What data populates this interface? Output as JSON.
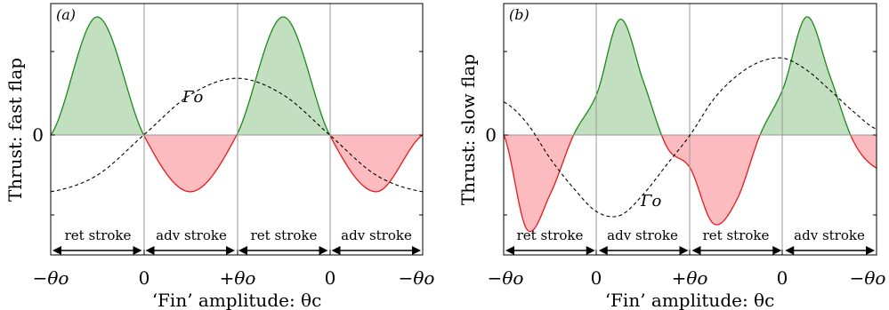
{
  "colors": {
    "positive_fill": "#c2e0bf",
    "positive_line": "#1a8a1a",
    "negative_fill": "#fcbcbf",
    "negative_line": "#e41a1c",
    "grid": "#999999"
  },
  "chart_data": [
    {
      "type": "area",
      "panel_label": "(a)",
      "ylabel": "Thrust: fast flap",
      "xlabel": "‘Fin’ amplitude: θc",
      "x_tick_labels": [
        "−θo",
        "0",
        "+θo",
        "0",
        "−θo"
      ],
      "y_tick_labels": [
        "0"
      ],
      "grid": false,
      "stroke_labels": [
        "ret stroke",
        "adv stroke",
        "ret stroke",
        "adv stroke"
      ],
      "curve_label": "Γo",
      "phase": [
        0,
        0.5,
        1,
        1.5,
        2,
        2.5,
        3,
        3.5,
        4
      ],
      "thrust": [
        0,
        1,
        0,
        -0.48,
        0,
        1,
        0,
        -0.48,
        0
      ],
      "gamma": [
        -0.48,
        -0.34,
        0,
        0.34,
        0.48,
        0.34,
        0,
        -0.34,
        -0.48
      ]
    },
    {
      "type": "area",
      "panel_label": "(b)",
      "ylabel": "Thrust: slow flap",
      "xlabel": "‘Fin’ amplitude: θc",
      "x_tick_labels": [
        "−θo",
        "0",
        "+θo",
        "0",
        "−θo"
      ],
      "y_tick_labels": [
        "0"
      ],
      "grid": false,
      "stroke_labels": [
        "ret stroke",
        "adv stroke",
        "ret stroke",
        "adv stroke"
      ],
      "curve_label": "Γo",
      "phase": [
        0,
        0.25,
        0.5,
        0.75,
        1,
        1.25,
        1.5,
        1.75,
        2,
        2.25,
        2.5,
        2.75,
        3,
        3.25,
        3.5,
        3.75,
        4
      ],
      "thrust": [
        0,
        -0.8,
        -0.5,
        0,
        0.35,
        0.98,
        0.45,
        -0.1,
        -0.28,
        -0.75,
        -0.55,
        0,
        0.4,
        1.0,
        0.5,
        -0.05,
        -0.28
      ],
      "gamma": [
        0.28,
        0.1,
        -0.2,
        -0.45,
        -0.65,
        -0.68,
        -0.5,
        -0.25,
        0,
        0.3,
        0.5,
        0.62,
        0.65,
        0.55,
        0.38,
        0.2,
        0.05
      ]
    }
  ]
}
